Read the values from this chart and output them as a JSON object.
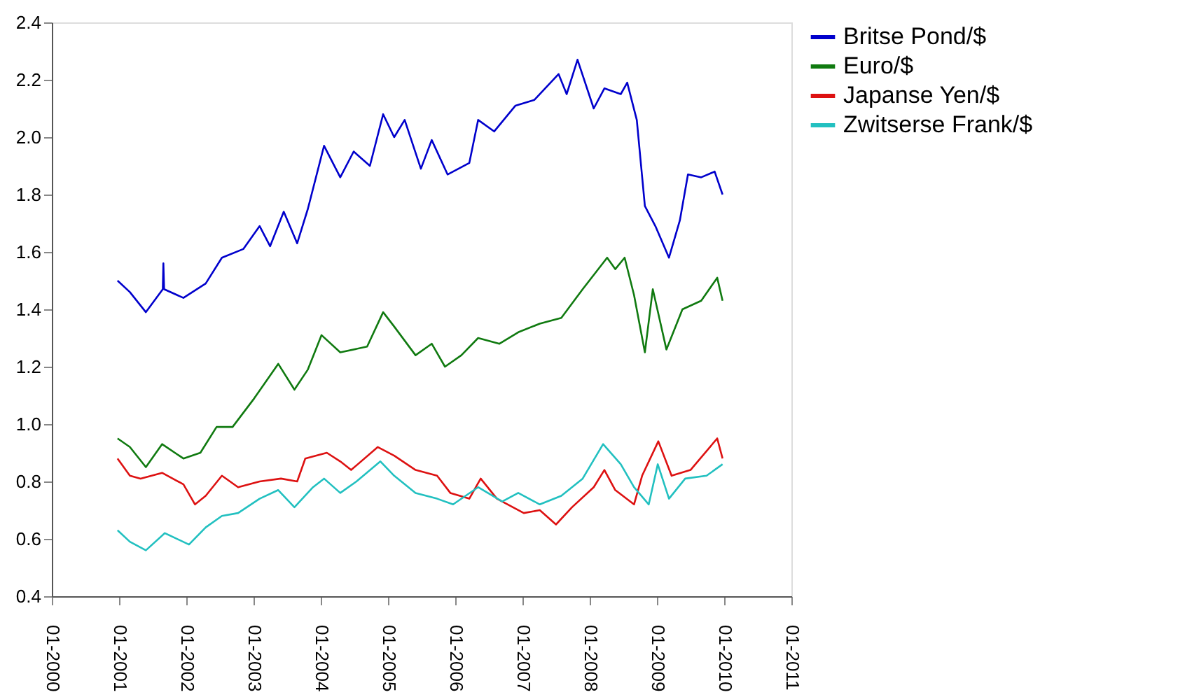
{
  "chart_data": {
    "type": "line",
    "xlim": [
      "2000-01-01",
      "2011-01-01"
    ],
    "xticks": [
      {
        "value": "2000-01-01",
        "label": "01-2000"
      },
      {
        "value": "2001-01-01",
        "label": "01-2001"
      },
      {
        "value": "2002-01-01",
        "label": "01-2002"
      },
      {
        "value": "2003-01-01",
        "label": "01-2003"
      },
      {
        "value": "2004-01-01",
        "label": "01-2004"
      },
      {
        "value": "2005-01-01",
        "label": "01-2005"
      },
      {
        "value": "2006-01-01",
        "label": "01-2006"
      },
      {
        "value": "2007-01-01",
        "label": "01-2007"
      },
      {
        "value": "2008-01-01",
        "label": "01-2008"
      },
      {
        "value": "2009-01-01",
        "label": "01-2009"
      },
      {
        "value": "2010-01-01",
        "label": "01-2010"
      },
      {
        "value": "2011-01-01",
        "label": "01-2011"
      }
    ],
    "ylim": [
      0.4,
      2.4
    ],
    "yticks": [
      {
        "value": 0.4,
        "label": "0.4"
      },
      {
        "value": 0.6,
        "label": "0.6"
      },
      {
        "value": 0.8,
        "label": "0.8"
      },
      {
        "value": 1.0,
        "label": "1.0"
      },
      {
        "value": 1.2,
        "label": "1.2"
      },
      {
        "value": 1.4,
        "label": "1.4"
      },
      {
        "value": 1.6,
        "label": "1.6"
      },
      {
        "value": 1.8,
        "label": "1.8"
      },
      {
        "value": 2.0,
        "label": "2.0"
      },
      {
        "value": 2.2,
        "label": "2.2"
      },
      {
        "value": 2.4,
        "label": "2.4"
      }
    ],
    "grid": false,
    "legend": "right",
    "marker": "none",
    "line_style": "solid",
    "series": [
      {
        "name": "Britse Pond/$",
        "color": "#0000cc",
        "x": [
          "2000-12-23",
          "2001-02-28",
          "2001-05-26",
          "2001-08-26",
          "2001-08-29",
          "2001-09-02",
          "2001-12-16",
          "2002-04-16",
          "2002-07-13",
          "2002-11-06",
          "2003-02-03",
          "2003-04-01",
          "2003-06-14",
          "2003-08-26",
          "2003-10-23",
          "2004-01-19",
          "2004-04-16",
          "2004-06-28",
          "2004-09-24",
          "2004-12-05",
          "2005-02-03",
          "2005-04-01",
          "2005-06-28",
          "2005-08-26",
          "2005-11-20",
          "2006-03-18",
          "2006-05-05",
          "2006-07-31",
          "2006-11-24",
          "2007-03-07",
          "2007-07-16",
          "2007-08-29",
          "2007-10-27",
          "2008-01-23",
          "2008-03-21",
          "2008-06-18",
          "2008-07-23",
          "2008-09-13",
          "2008-10-27",
          "2008-12-23",
          "2009-03-07",
          "2009-05-05",
          "2009-06-18",
          "2009-08-29",
          "2009-11-10",
          "2009-12-23"
        ],
        "values": [
          1.5,
          1.46,
          1.39,
          1.47,
          1.56,
          1.47,
          1.44,
          1.49,
          1.58,
          1.61,
          1.69,
          1.62,
          1.74,
          1.63,
          1.75,
          1.97,
          1.86,
          1.95,
          1.9,
          2.08,
          2.0,
          2.06,
          1.89,
          1.99,
          1.87,
          1.91,
          2.06,
          2.02,
          2.11,
          2.13,
          2.22,
          2.15,
          2.27,
          2.1,
          2.17,
          2.15,
          2.19,
          2.06,
          1.76,
          1.69,
          1.58,
          1.71,
          1.87,
          1.86,
          1.88,
          1.8
        ]
      },
      {
        "name": "Euro/$",
        "color": "#107a10",
        "x": [
          "2000-12-23",
          "2001-02-28",
          "2001-05-26",
          "2001-08-22",
          "2001-12-16",
          "2002-03-18",
          "2002-06-14",
          "2002-09-09",
          "2003-01-05",
          "2003-05-15",
          "2003-08-11",
          "2003-10-23",
          "2004-01-05",
          "2004-04-16",
          "2004-09-09",
          "2004-12-05",
          "2005-02-03",
          "2005-05-30",
          "2005-08-26",
          "2005-11-06",
          "2006-02-03",
          "2006-05-05",
          "2006-08-29",
          "2006-12-09",
          "2007-04-05",
          "2007-07-31",
          "2007-11-24",
          "2008-04-05",
          "2008-05-19",
          "2008-07-09",
          "2008-08-29",
          "2008-10-27",
          "2008-12-09",
          "2009-02-21",
          "2009-05-19",
          "2009-08-29",
          "2009-11-24",
          "2009-12-23"
        ],
        "values": [
          0.95,
          0.92,
          0.85,
          0.93,
          0.88,
          0.9,
          0.99,
          0.99,
          1.09,
          1.21,
          1.12,
          1.19,
          1.31,
          1.25,
          1.27,
          1.39,
          1.34,
          1.24,
          1.28,
          1.2,
          1.24,
          1.3,
          1.28,
          1.32,
          1.35,
          1.37,
          1.47,
          1.58,
          1.54,
          1.58,
          1.45,
          1.25,
          1.47,
          1.26,
          1.4,
          1.43,
          1.51,
          1.43
        ]
      },
      {
        "name": "Japanse Yen/$",
        "color": "#dd1111",
        "x": [
          "2000-12-23",
          "2001-02-28",
          "2001-04-27",
          "2001-08-22",
          "2001-12-16",
          "2002-02-17",
          "2002-04-16",
          "2002-07-13",
          "2002-10-09",
          "2003-02-03",
          "2003-05-30",
          "2003-08-26",
          "2003-10-09",
          "2004-02-03",
          "2004-04-16",
          "2004-06-14",
          "2004-11-06",
          "2005-02-03",
          "2005-05-30",
          "2005-09-24",
          "2005-12-05",
          "2006-03-18",
          "2006-05-19",
          "2006-08-15",
          "2007-01-08",
          "2007-04-05",
          "2007-07-02",
          "2007-09-27",
          "2008-01-23",
          "2008-03-21",
          "2008-05-19",
          "2008-08-29",
          "2008-10-12",
          "2009-01-08",
          "2009-03-21",
          "2009-07-02",
          "2009-11-24",
          "2009-12-23"
        ],
        "values": [
          0.88,
          0.82,
          0.81,
          0.83,
          0.79,
          0.72,
          0.75,
          0.82,
          0.78,
          0.8,
          0.81,
          0.8,
          0.88,
          0.9,
          0.87,
          0.84,
          0.92,
          0.89,
          0.84,
          0.82,
          0.76,
          0.74,
          0.81,
          0.74,
          0.69,
          0.7,
          0.65,
          0.71,
          0.78,
          0.84,
          0.77,
          0.72,
          0.82,
          0.94,
          0.82,
          0.84,
          0.95,
          0.88
        ]
      },
      {
        "name": "Zwitserse Frank/$",
        "color": "#22c0c0",
        "x": [
          "2000-12-23",
          "2001-02-28",
          "2001-05-26",
          "2001-09-06",
          "2002-01-15",
          "2002-04-16",
          "2002-07-13",
          "2002-10-09",
          "2003-02-03",
          "2003-05-15",
          "2003-08-11",
          "2003-11-20",
          "2004-01-19",
          "2004-04-16",
          "2004-07-13",
          "2004-11-20",
          "2005-02-03",
          "2005-05-30",
          "2005-09-24",
          "2005-12-20",
          "2006-05-05",
          "2006-09-13",
          "2006-12-09",
          "2007-04-05",
          "2007-07-31",
          "2007-11-24",
          "2008-03-14",
          "2008-06-18",
          "2008-08-29",
          "2008-11-17",
          "2009-01-05",
          "2009-03-07",
          "2009-06-03",
          "2009-09-27",
          "2009-12-23"
        ],
        "values": [
          0.63,
          0.59,
          0.56,
          0.62,
          0.58,
          0.64,
          0.68,
          0.69,
          0.74,
          0.77,
          0.71,
          0.78,
          0.81,
          0.76,
          0.8,
          0.87,
          0.82,
          0.76,
          0.74,
          0.72,
          0.78,
          0.73,
          0.76,
          0.72,
          0.75,
          0.81,
          0.93,
          0.86,
          0.78,
          0.72,
          0.86,
          0.74,
          0.81,
          0.82,
          0.86
        ]
      }
    ]
  }
}
